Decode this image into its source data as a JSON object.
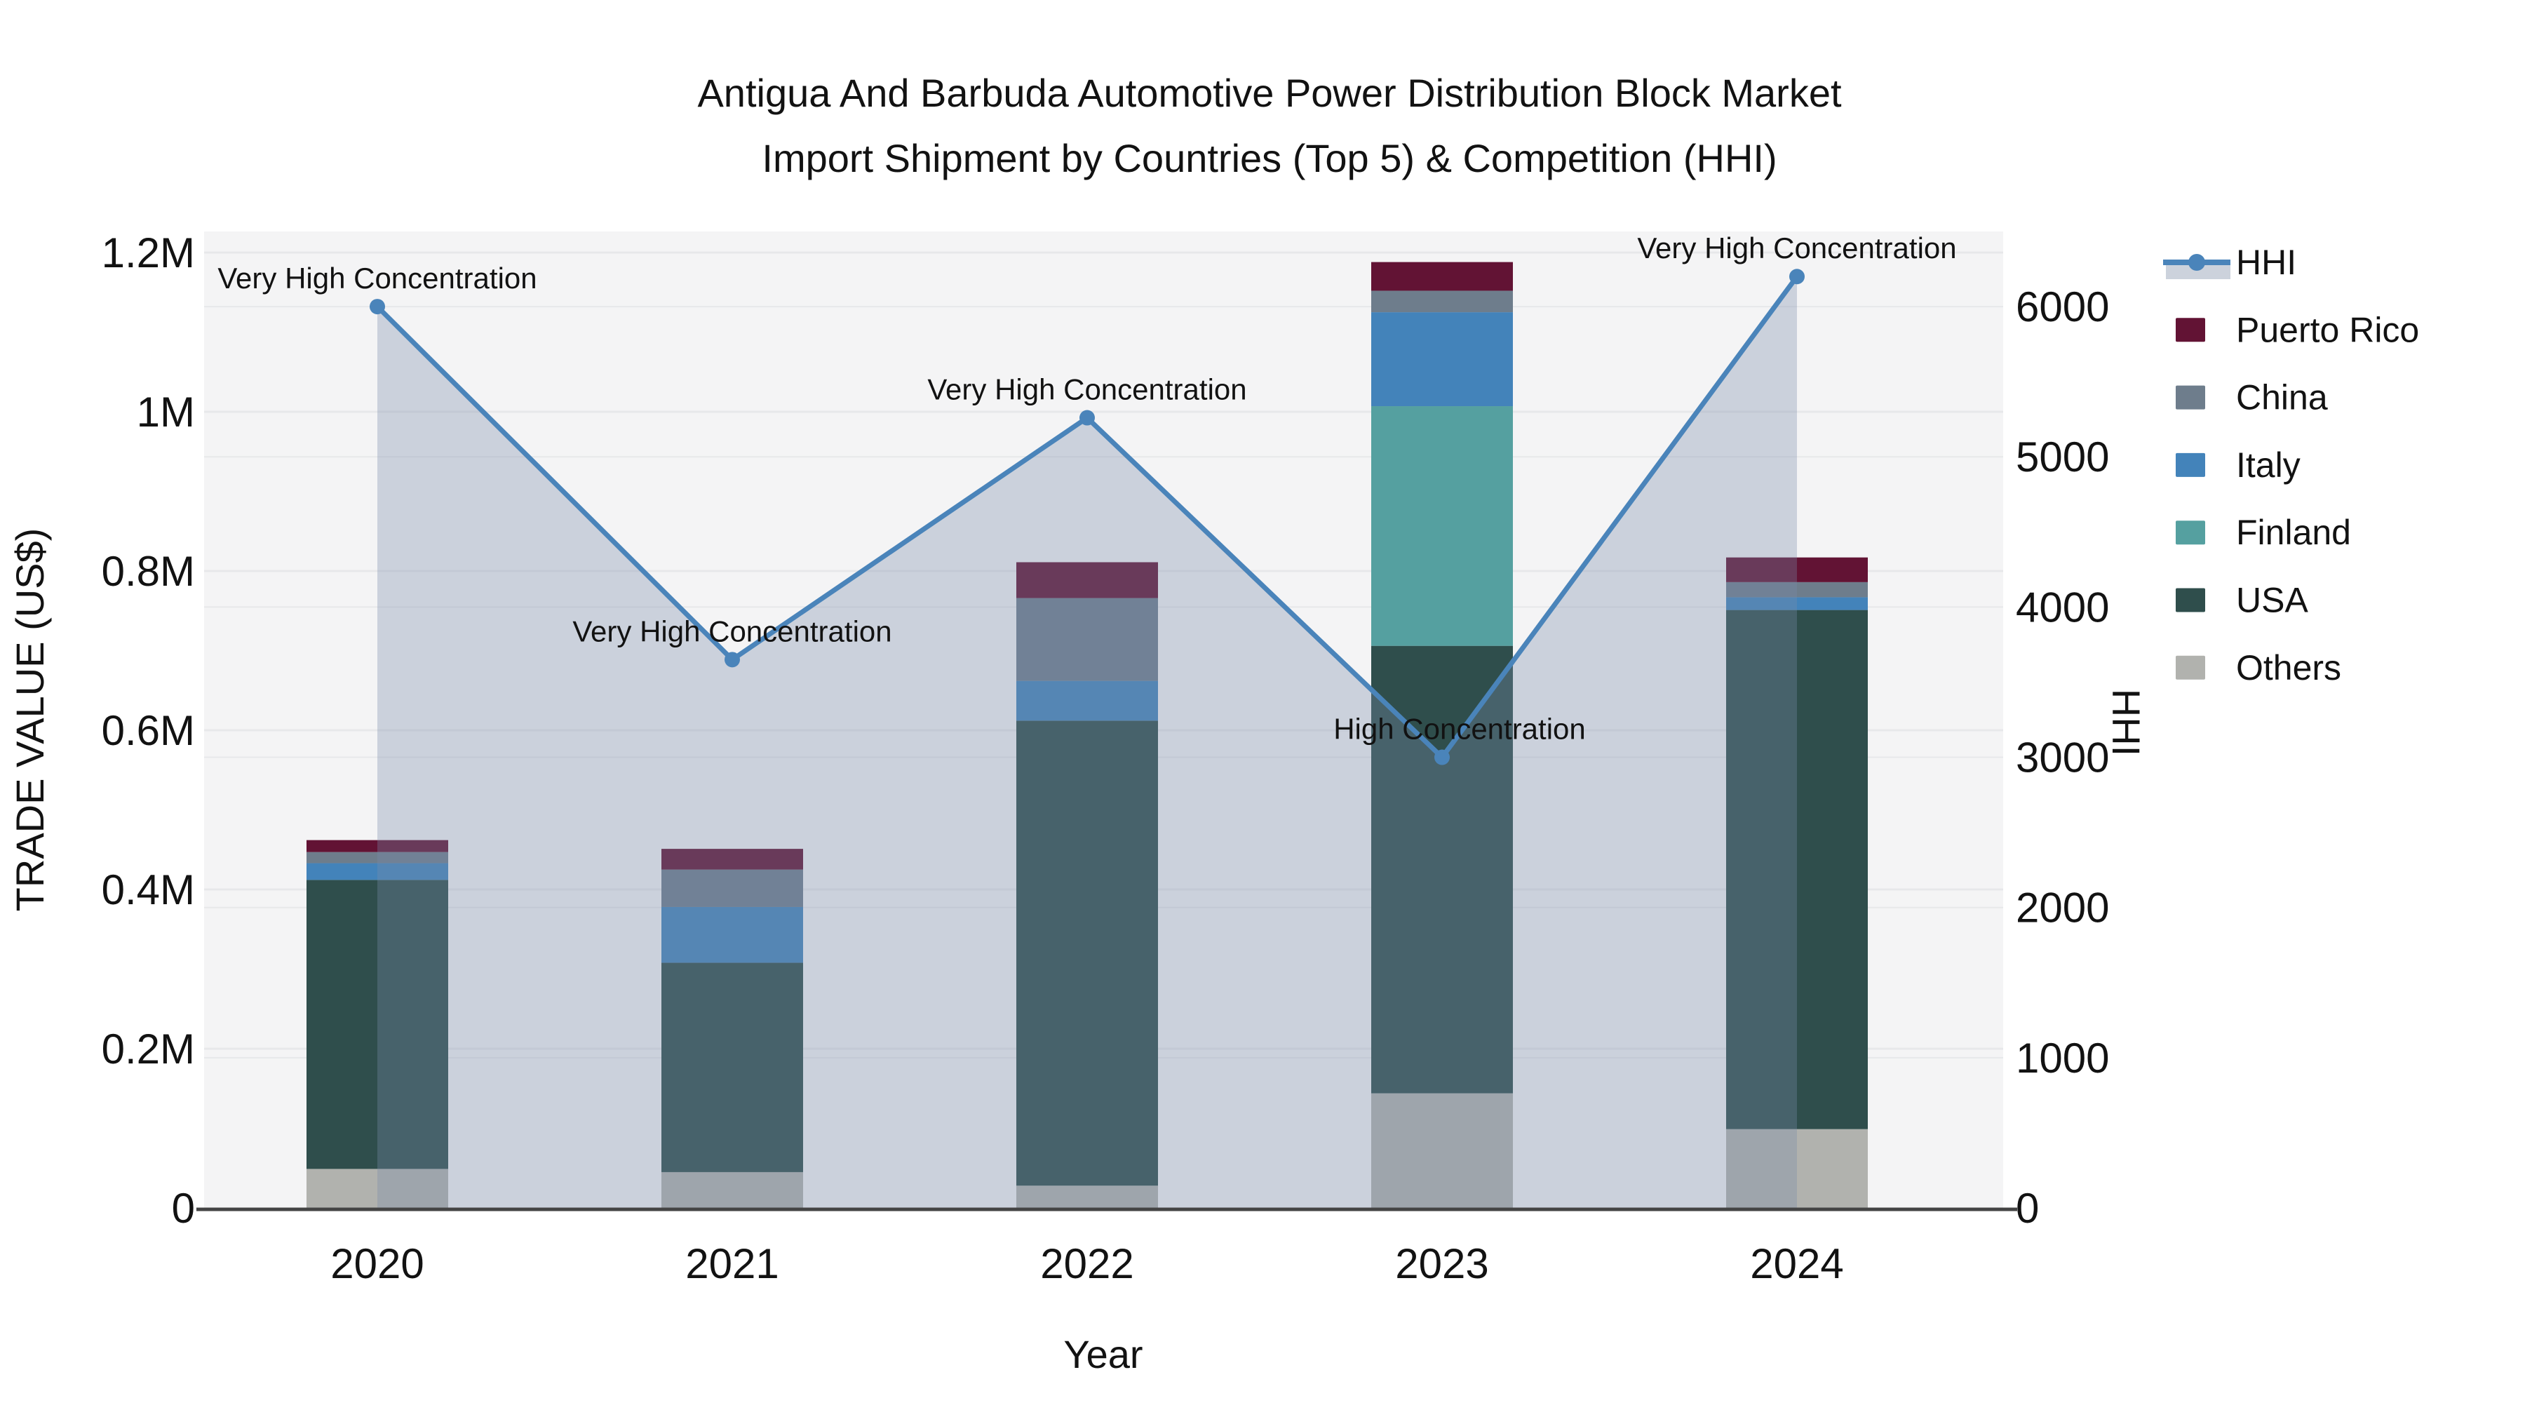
{
  "title": {
    "line1": "Antigua And Barbuda Automotive Power Distribution Block Market",
    "line2": "Import Shipment by Countries (Top 5) & Competition (HHI)"
  },
  "axes": {
    "left": {
      "title": "TRADE VALUE (US$)",
      "ticks": [
        {
          "label": "0",
          "value": 0
        },
        {
          "label": "0.2M",
          "value": 200000
        },
        {
          "label": "0.4M",
          "value": 400000
        },
        {
          "label": "0.6M",
          "value": 600000
        },
        {
          "label": "0.8M",
          "value": 800000
        },
        {
          "label": "1M",
          "value": 1000000
        },
        {
          "label": "1.2M",
          "value": 1200000
        }
      ],
      "max": 1226400
    },
    "right": {
      "title": "HHI",
      "ticks": [
        {
          "label": "0",
          "value": 0
        },
        {
          "label": "1000",
          "value": 1000
        },
        {
          "label": "2000",
          "value": 2000
        },
        {
          "label": "3000",
          "value": 3000
        },
        {
          "label": "4000",
          "value": 4000
        },
        {
          "label": "5000",
          "value": 5000
        },
        {
          "label": "6000",
          "value": 6000
        }
      ],
      "max": 6500
    },
    "x": {
      "title": "Year",
      "ticks": [
        "2020",
        "2021",
        "2022",
        "2023",
        "2024"
      ]
    }
  },
  "legend": [
    {
      "label": "HHI",
      "color": "#4a84ba",
      "type": "line"
    },
    {
      "label": "Puerto Rico",
      "color": "#621334",
      "type": "swatch"
    },
    {
      "label": "China",
      "color": "#6e7d8c",
      "type": "swatch"
    },
    {
      "label": "Italy",
      "color": "#4383ba",
      "type": "swatch"
    },
    {
      "label": "Finland",
      "color": "#55a0a0",
      "type": "swatch"
    },
    {
      "label": "USA",
      "color": "#2f4e4c",
      "type": "swatch"
    },
    {
      "label": "Others",
      "color": "#b1b2ae",
      "type": "swatch"
    }
  ],
  "colors": {
    "plot_bg": "#f4f4f5",
    "gridline": "#e7e8ea",
    "axis_line": "#444444",
    "hhi_line": "#4a84ba",
    "hhi_fill": "rgba(120,140,170,0.33)",
    "legend_fill_sample": "#ccd2dc"
  },
  "chart_data": {
    "type": "bar",
    "subtype": "stacked bars with overlaid area-line (dual y-axis)",
    "categories": [
      "2020",
      "2021",
      "2022",
      "2023",
      "2024"
    ],
    "bar_unit": "US$ (left axis, TRADE VALUE)",
    "series": [
      {
        "name": "Others",
        "color": "#b1b2ae",
        "values": [
          49000,
          45000,
          28000,
          144000,
          99000
        ]
      },
      {
        "name": "USA",
        "color": "#2f4e4c",
        "values": [
          363000,
          263000,
          584000,
          562000,
          652000
        ]
      },
      {
        "name": "Finland",
        "color": "#55a0a0",
        "values": [
          0,
          0,
          0,
          301000,
          0
        ]
      },
      {
        "name": "Italy",
        "color": "#4383ba",
        "values": [
          21000,
          70000,
          50000,
          118000,
          16000
        ]
      },
      {
        "name": "China",
        "color": "#6e7d8c",
        "values": [
          14000,
          47000,
          104000,
          27000,
          19000
        ]
      },
      {
        "name": "Puerto Rico",
        "color": "#621334",
        "values": [
          15000,
          26000,
          45000,
          36000,
          31000
        ]
      }
    ],
    "bar_totals": [
      462000,
      451000,
      811000,
      1188000,
      817000
    ],
    "line": {
      "name": "HHI",
      "color": "#4a84ba",
      "axis": "right",
      "values": [
        6000,
        3650,
        5260,
        3000,
        6200
      ],
      "area_fill": true
    },
    "ylim_left": [
      0,
      1226400
    ],
    "ylim_right": [
      0,
      6500
    ],
    "grid": true,
    "legend_position": "right",
    "annotations": [
      {
        "x": "2020",
        "text": "Very High Concentration"
      },
      {
        "x": "2021",
        "text": "Very High Concentration"
      },
      {
        "x": "2022",
        "text": "Very High Concentration"
      },
      {
        "x": "2023",
        "text": "High Concentration"
      },
      {
        "x": "2024",
        "text": "Very High Concentration"
      }
    ]
  }
}
